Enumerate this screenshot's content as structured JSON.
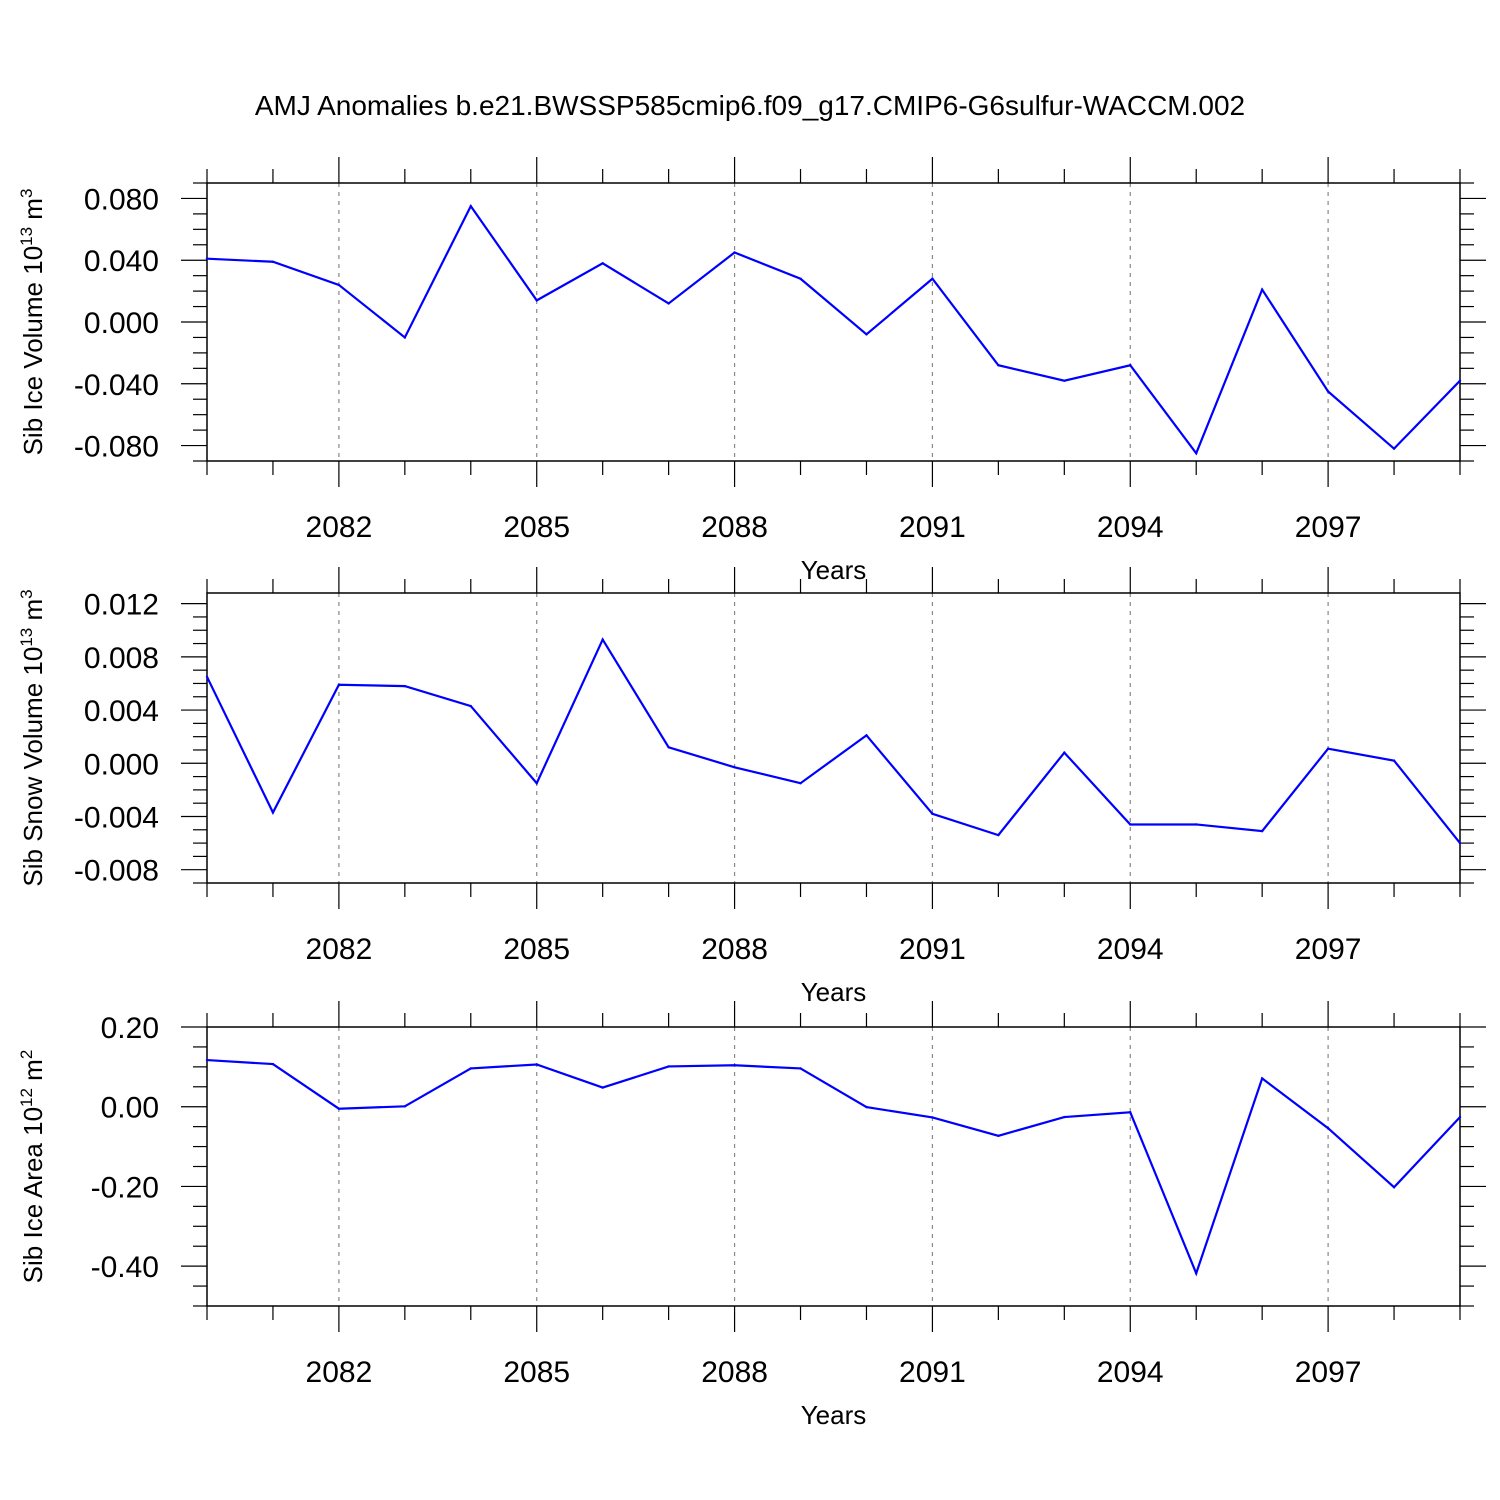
{
  "title": "AMJ Anomalies b.e21.BWSSP585cmip6.f09_g17.CMIP6-G6sulfur-WACCM.002",
  "colors": {
    "line": "#0000ff",
    "axis": "#000000",
    "grid": "#888888"
  },
  "chart_data": [
    {
      "type": "line",
      "ylabel": "Sib Ice Volume 10",
      "ylabel_sup": "13",
      "ylabel_unit": " m",
      "ylabel_unit_sup": "3",
      "xlabel": "Years",
      "xlim": [
        2080,
        2099
      ],
      "ylim": [
        -0.09,
        0.09
      ],
      "yticks": [
        0.08,
        0.04,
        0.0,
        -0.04,
        -0.08
      ],
      "ytick_labels": [
        "0.080",
        "0.040",
        "0.000",
        "-0.040",
        "-0.080"
      ],
      "yminor_step": 0.01,
      "xticks": [
        2082,
        2085,
        2088,
        2091,
        2094,
        2097
      ],
      "xtick_labels": [
        "2082",
        "2085",
        "2088",
        "2091",
        "2094",
        "2097"
      ],
      "grid": "dashed vertical at major x ticks",
      "x": [
        2080,
        2081,
        2082,
        2083,
        2084,
        2085,
        2086,
        2087,
        2088,
        2089,
        2090,
        2091,
        2092,
        2093,
        2094,
        2095,
        2096,
        2097,
        2098,
        2099
      ],
      "series": [
        {
          "values": [
            0.041,
            0.039,
            0.024,
            -0.01,
            0.075,
            0.014,
            0.038,
            0.012,
            0.045,
            0.028,
            -0.008,
            0.028,
            -0.028,
            -0.038,
            -0.028,
            -0.085,
            0.021,
            -0.045,
            -0.082,
            -0.038
          ]
        }
      ]
    },
    {
      "type": "line",
      "ylabel": "Sib Snow Volume 10",
      "ylabel_sup": "13",
      "ylabel_unit": " m",
      "ylabel_unit_sup": "3",
      "xlabel": "Years",
      "xlim": [
        2080,
        2099
      ],
      "ylim": [
        -0.009,
        0.0128
      ],
      "yticks": [
        0.012,
        0.008,
        0.004,
        0.0,
        -0.004,
        -0.008
      ],
      "ytick_labels": [
        "0.012",
        "0.008",
        "0.004",
        "0.000",
        "-0.004",
        "-0.008"
      ],
      "yminor_step": 0.001,
      "xticks": [
        2082,
        2085,
        2088,
        2091,
        2094,
        2097
      ],
      "xtick_labels": [
        "2082",
        "2085",
        "2088",
        "2091",
        "2094",
        "2097"
      ],
      "grid": "dashed vertical at major x ticks",
      "x": [
        2080,
        2081,
        2082,
        2083,
        2084,
        2085,
        2086,
        2087,
        2088,
        2089,
        2090,
        2091,
        2092,
        2093,
        2094,
        2095,
        2096,
        2097,
        2098,
        2099
      ],
      "series": [
        {
          "values": [
            0.0065,
            -0.0037,
            0.0059,
            0.0058,
            0.0043,
            -0.0015,
            0.0093,
            0.0012,
            -0.0003,
            -0.0015,
            0.0021,
            -0.0038,
            -0.0054,
            0.0008,
            -0.0046,
            -0.0046,
            -0.0051,
            0.0011,
            0.0002,
            -0.006
          ]
        }
      ]
    },
    {
      "type": "line",
      "ylabel": "Sib Ice Area 10",
      "ylabel_sup": "12",
      "ylabel_unit": " m",
      "ylabel_unit_sup": "2",
      "xlabel": "Years",
      "xlim": [
        2080,
        2099
      ],
      "ylim": [
        -0.5,
        0.2
      ],
      "yticks": [
        0.2,
        0.0,
        -0.2,
        -0.4
      ],
      "ytick_labels": [
        "0.20",
        "0.00",
        "-0.20",
        "-0.40"
      ],
      "yminor_step": 0.05,
      "xticks": [
        2082,
        2085,
        2088,
        2091,
        2094,
        2097
      ],
      "xtick_labels": [
        "2082",
        "2085",
        "2088",
        "2091",
        "2094",
        "2097"
      ],
      "grid": "dashed vertical at major x ticks",
      "x": [
        2080,
        2081,
        2082,
        2083,
        2084,
        2085,
        2086,
        2087,
        2088,
        2089,
        2090,
        2091,
        2092,
        2093,
        2094,
        2095,
        2096,
        2097,
        2098,
        2099
      ],
      "series": [
        {
          "values": [
            0.117,
            0.107,
            -0.005,
            0.001,
            0.096,
            0.106,
            0.048,
            0.101,
            0.104,
            0.096,
            -0.001,
            -0.027,
            -0.073,
            -0.026,
            -0.014,
            -0.418,
            0.071,
            -0.054,
            -0.202,
            -0.026
          ]
        }
      ]
    }
  ]
}
